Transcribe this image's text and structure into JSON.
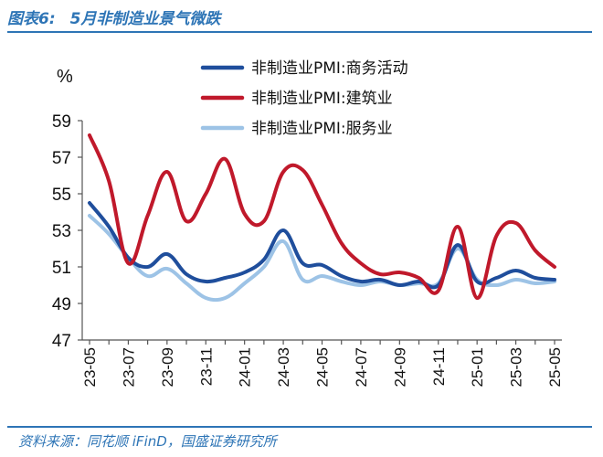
{
  "header": {
    "figure_label": "图表6:",
    "title": "5月非制造业景气微跌"
  },
  "footer": {
    "source": "资料来源：同花顺 iFinD，国盛证券研究所"
  },
  "colors": {
    "accent": "#2e75b6"
  },
  "chart_data": {
    "type": "line",
    "title": "5月非制造业景气微跌",
    "xlabel": "",
    "ylabel": "%",
    "ylim": [
      47,
      59
    ],
    "yticks": [
      47,
      49,
      51,
      53,
      55,
      57,
      59
    ],
    "grid": false,
    "legend_position": "top-right",
    "x": [
      "23-05",
      "23-06",
      "23-07",
      "23-08",
      "23-09",
      "23-10",
      "23-11",
      "23-12",
      "24-01",
      "24-02",
      "24-03",
      "24-04",
      "24-05",
      "24-06",
      "24-07",
      "24-08",
      "24-09",
      "24-10",
      "24-11",
      "24-12",
      "25-01",
      "25-02",
      "25-03",
      "25-04",
      "25-05"
    ],
    "xticks": [
      "23-05",
      "23-07",
      "23-09",
      "23-11",
      "24-01",
      "24-03",
      "24-05",
      "24-07",
      "24-09",
      "24-11",
      "25-01",
      "25-03",
      "25-05"
    ],
    "series": [
      {
        "name": "非制造业PMI:商务活动",
        "color": "#1f4e9c",
        "values": [
          54.5,
          53.2,
          51.5,
          51.0,
          51.7,
          50.6,
          50.2,
          50.4,
          50.7,
          51.4,
          53.0,
          51.2,
          51.1,
          50.5,
          50.2,
          50.3,
          50.0,
          50.2,
          50.0,
          52.2,
          50.2,
          50.4,
          50.8,
          50.4,
          50.3
        ]
      },
      {
        "name": "非制造业PMI:建筑业",
        "color": "#c0192b",
        "values": [
          58.2,
          55.7,
          51.2,
          53.8,
          56.2,
          53.5,
          55.0,
          56.9,
          53.9,
          53.5,
          56.2,
          56.3,
          54.4,
          52.3,
          51.2,
          50.6,
          50.7,
          50.4,
          49.7,
          53.2,
          49.3,
          52.7,
          53.4,
          51.9,
          51.0
        ]
      },
      {
        "name": "非制造业PMI:服务业",
        "color": "#9dc3e6",
        "values": [
          53.8,
          52.8,
          51.5,
          50.5,
          50.9,
          50.1,
          49.3,
          49.3,
          50.1,
          51.0,
          52.4,
          50.3,
          50.5,
          50.2,
          50.0,
          50.2,
          50.0,
          50.1,
          50.1,
          52.0,
          50.3,
          50.0,
          50.3,
          50.1,
          50.2
        ]
      }
    ]
  }
}
